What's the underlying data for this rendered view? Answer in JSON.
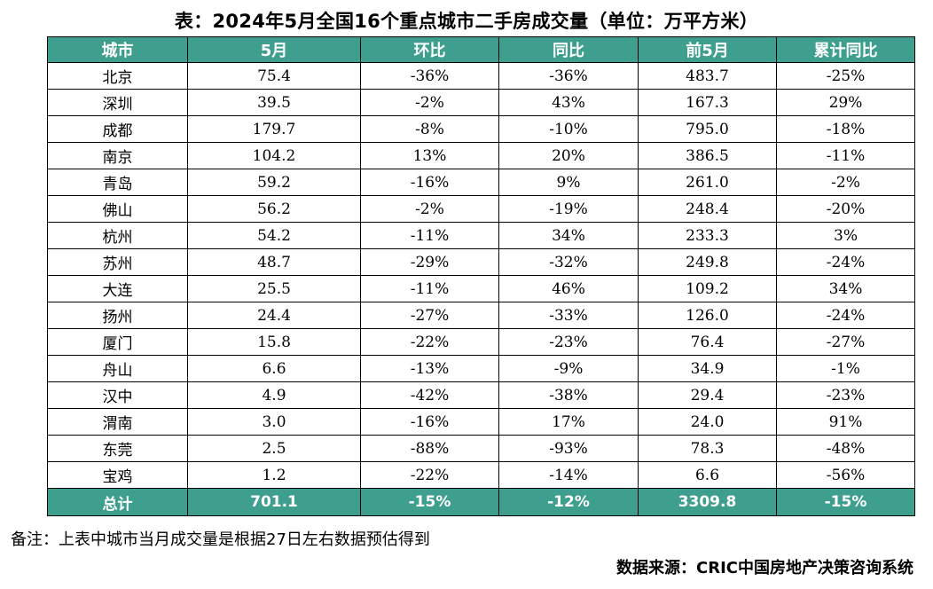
{
  "title": "表：2024年5月全国16个重点城市二手房成交量（单位：万平方米）",
  "headers": [
    "城市",
    "5月",
    "环比",
    "同比",
    "前5月",
    "累计同比"
  ],
  "rows": [
    [
      "北京",
      "75.4",
      "-36%",
      "-36%",
      "483.7",
      "-25%"
    ],
    [
      "深圳",
      "39.5",
      "-2%",
      "43%",
      "167.3",
      "29%"
    ],
    [
      "成都",
      "179.7",
      "-8%",
      "-10%",
      "795.0",
      "-18%"
    ],
    [
      "南京",
      "104.2",
      "13%",
      "20%",
      "386.5",
      "-11%"
    ],
    [
      "青岛",
      "59.2",
      "-16%",
      "9%",
      "261.0",
      "-2%"
    ],
    [
      "佛山",
      "56.2",
      "-2%",
      "-19%",
      "248.4",
      "-20%"
    ],
    [
      "杭州",
      "54.2",
      "-11%",
      "34%",
      "233.3",
      "3%"
    ],
    [
      "苏州",
      "48.7",
      "-29%",
      "-32%",
      "249.8",
      "-24%"
    ],
    [
      "大连",
      "25.5",
      "-11%",
      "46%",
      "109.2",
      "34%"
    ],
    [
      "扬州",
      "24.4",
      "-27%",
      "-33%",
      "126.0",
      "-24%"
    ],
    [
      "厦门",
      "15.8",
      "-22%",
      "-23%",
      "76.4",
      "-27%"
    ],
    [
      "舟山",
      "6.6",
      "-13%",
      "-9%",
      "34.9",
      "-1%"
    ],
    [
      "汉中",
      "4.9",
      "-42%",
      "-38%",
      "29.4",
      "-23%"
    ],
    [
      "渭南",
      "3.0",
      "-16%",
      "17%",
      "24.0",
      "91%"
    ],
    [
      "东莞",
      "2.5",
      "-88%",
      "-93%",
      "78.3",
      "-48%"
    ],
    [
      "宝鸡",
      "1.2",
      "-22%",
      "-14%",
      "6.6",
      "-56%"
    ]
  ],
  "total": [
    "总计",
    "701.1",
    "-15%",
    "-12%",
    "3309.8",
    "-15%"
  ],
  "note": "备注：上表中城市当月成交量是根据27日左右数据预估得到",
  "source": "数据来源：CRIC中国房地产决策咨询系统",
  "colors": {
    "header_bg": "#3f9f8f",
    "header_text": "#ffffff"
  }
}
